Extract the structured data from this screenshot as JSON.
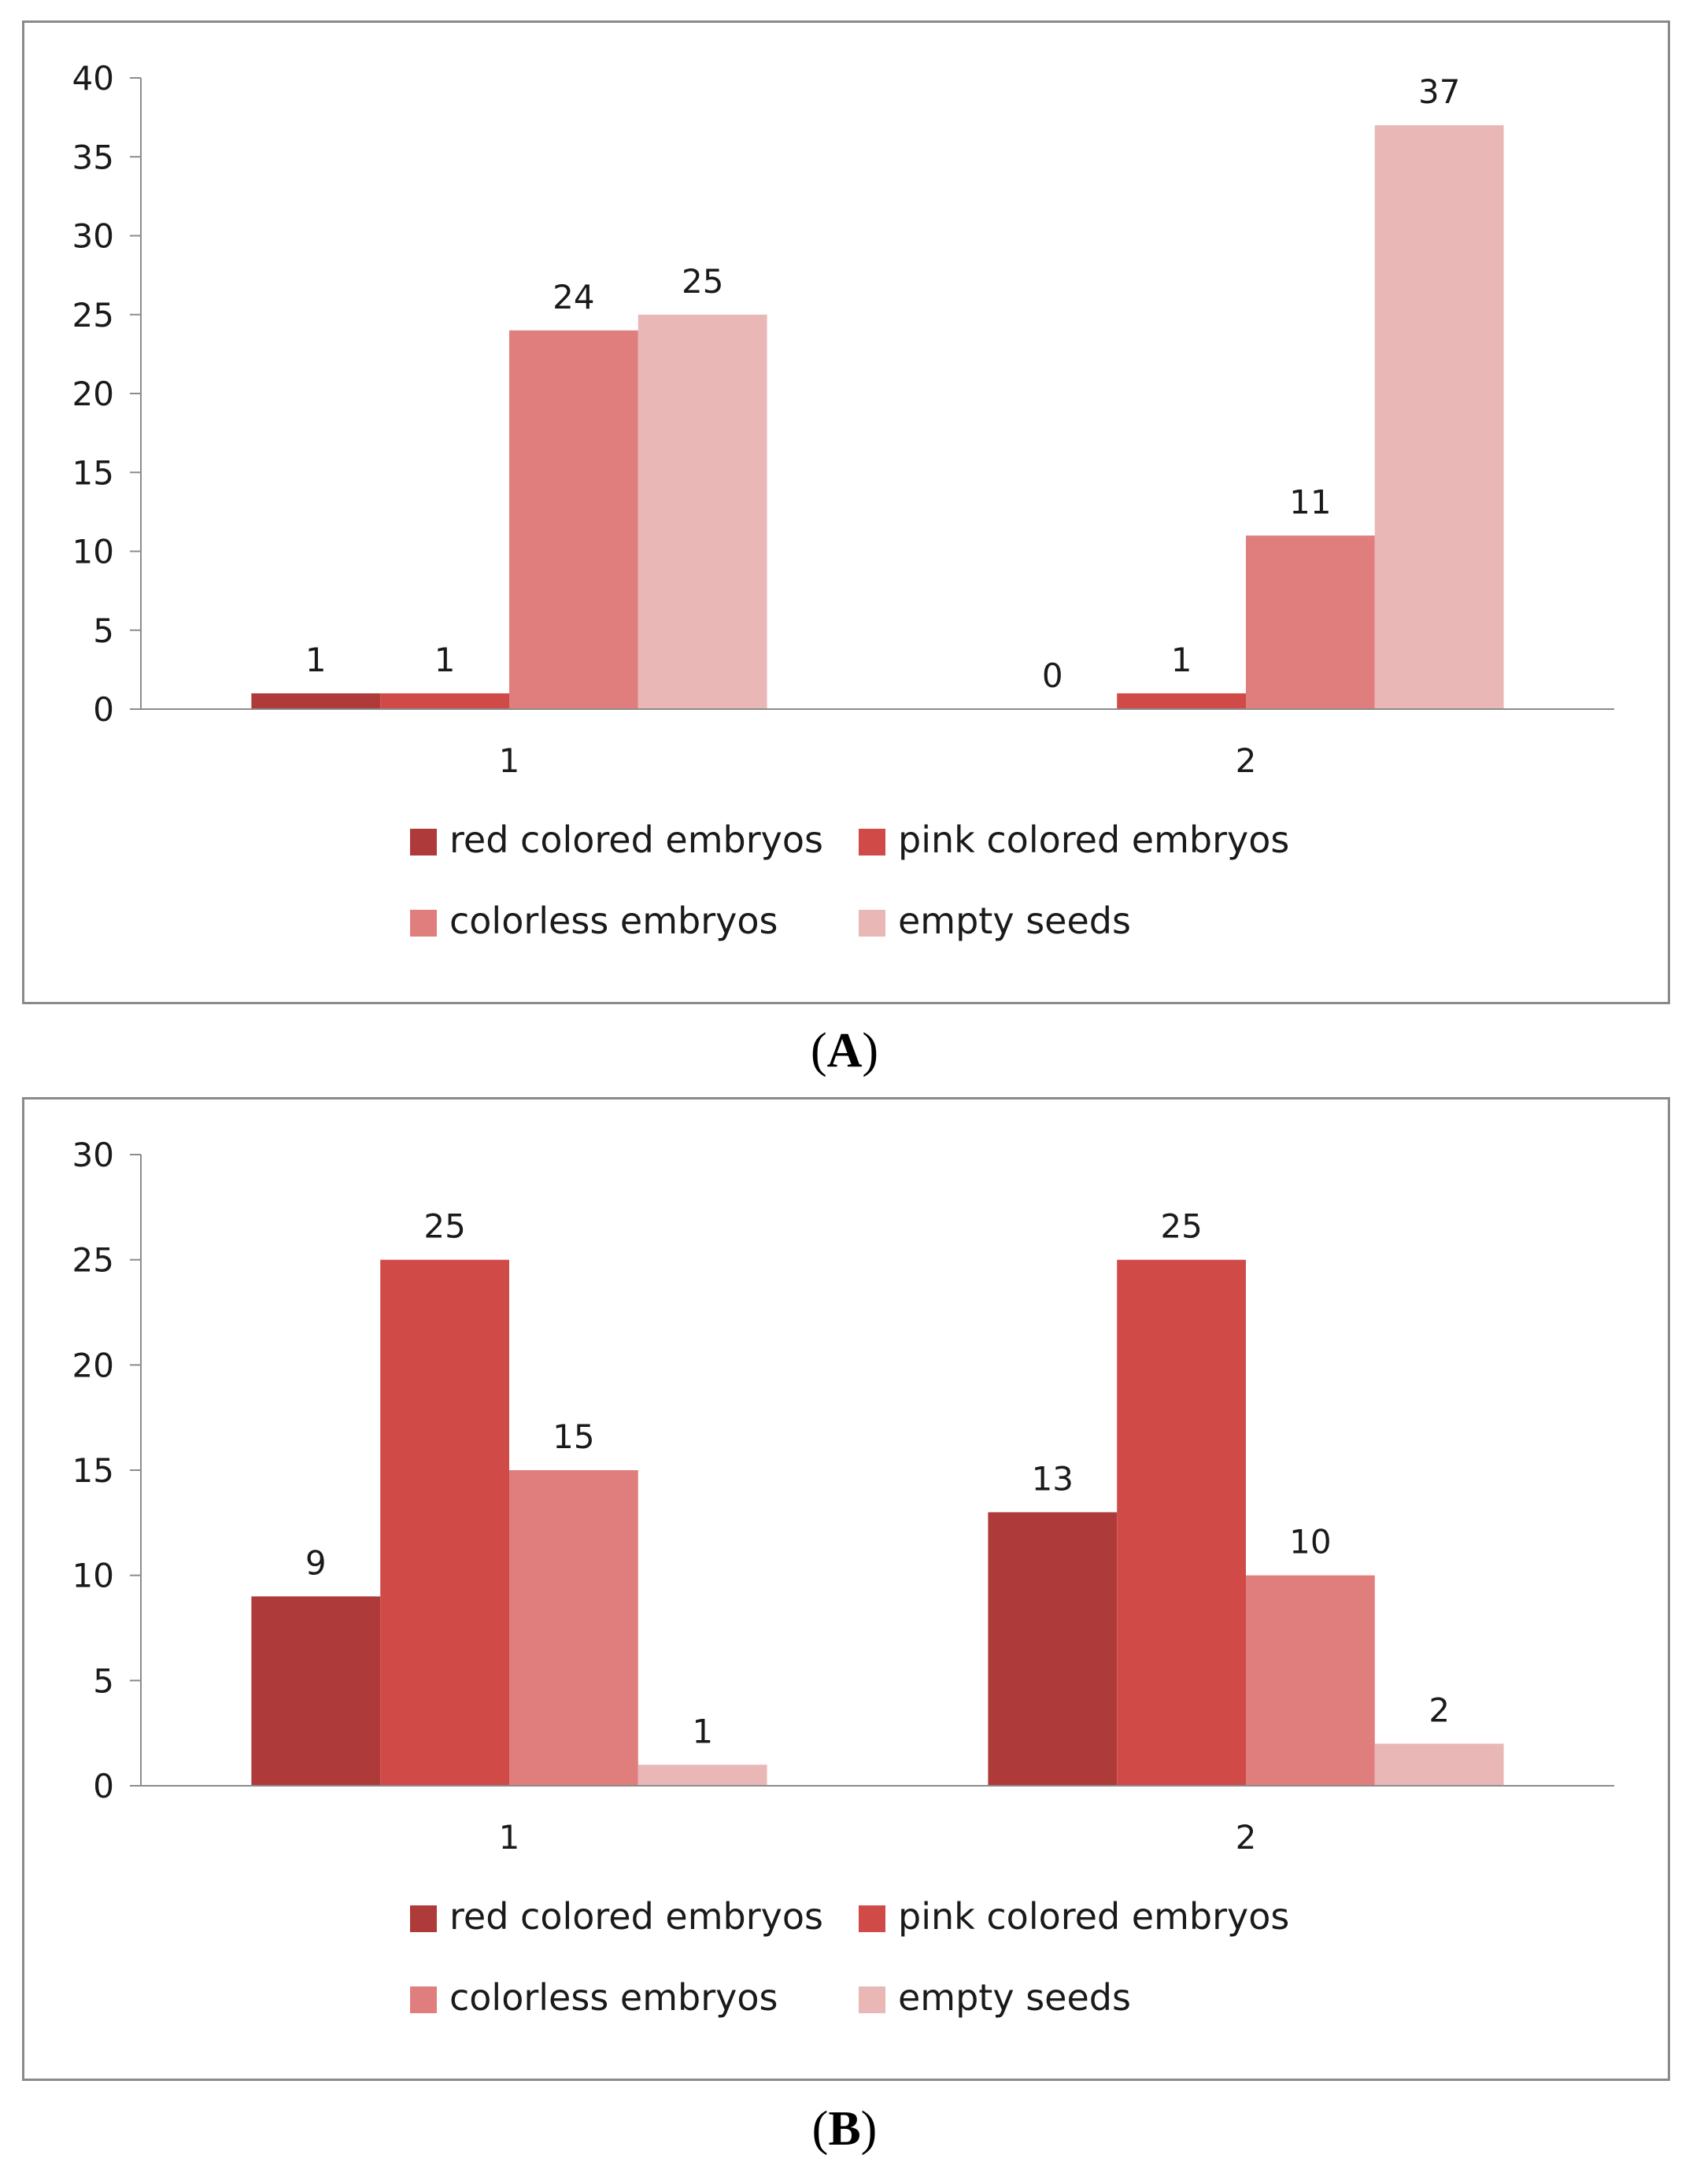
{
  "chart_data": [
    {
      "type": "bar",
      "panel_label": "A",
      "categories": [
        "1",
        "2"
      ],
      "series": [
        {
          "name": "red colored embryos",
          "color": "#af3a3a",
          "values": [
            1,
            0
          ]
        },
        {
          "name": "pink colored embryos",
          "color": "#d04a48",
          "values": [
            1,
            1
          ]
        },
        {
          "name": "colorless embryos",
          "color": "#e07e7d",
          "values": [
            24,
            11
          ]
        },
        {
          "name": "empty seeds",
          "color": "#e9b7b6",
          "values": [
            25,
            37
          ]
        }
      ],
      "ylim": [
        0,
        40
      ],
      "yticks": [
        0,
        5,
        10,
        15,
        20,
        25,
        30,
        35,
        40
      ],
      "xlabel": "",
      "ylabel": "",
      "title": "",
      "legend_position": "bottom"
    },
    {
      "type": "bar",
      "panel_label": "B",
      "categories": [
        "1",
        "2"
      ],
      "series": [
        {
          "name": "red colored embryos",
          "color": "#af3a3a",
          "values": [
            9,
            13
          ]
        },
        {
          "name": "pink colored embryos",
          "color": "#d04a48",
          "values": [
            25,
            25
          ]
        },
        {
          "name": "colorless embryos",
          "color": "#e07e7d",
          "values": [
            15,
            10
          ]
        },
        {
          "name": "empty seeds",
          "color": "#e9b7b6",
          "values": [
            1,
            2
          ]
        }
      ],
      "ylim": [
        0,
        30
      ],
      "yticks": [
        0,
        5,
        10,
        15,
        20,
        25,
        30
      ],
      "xlabel": "",
      "ylabel": "",
      "title": "",
      "legend_position": "bottom"
    }
  ]
}
